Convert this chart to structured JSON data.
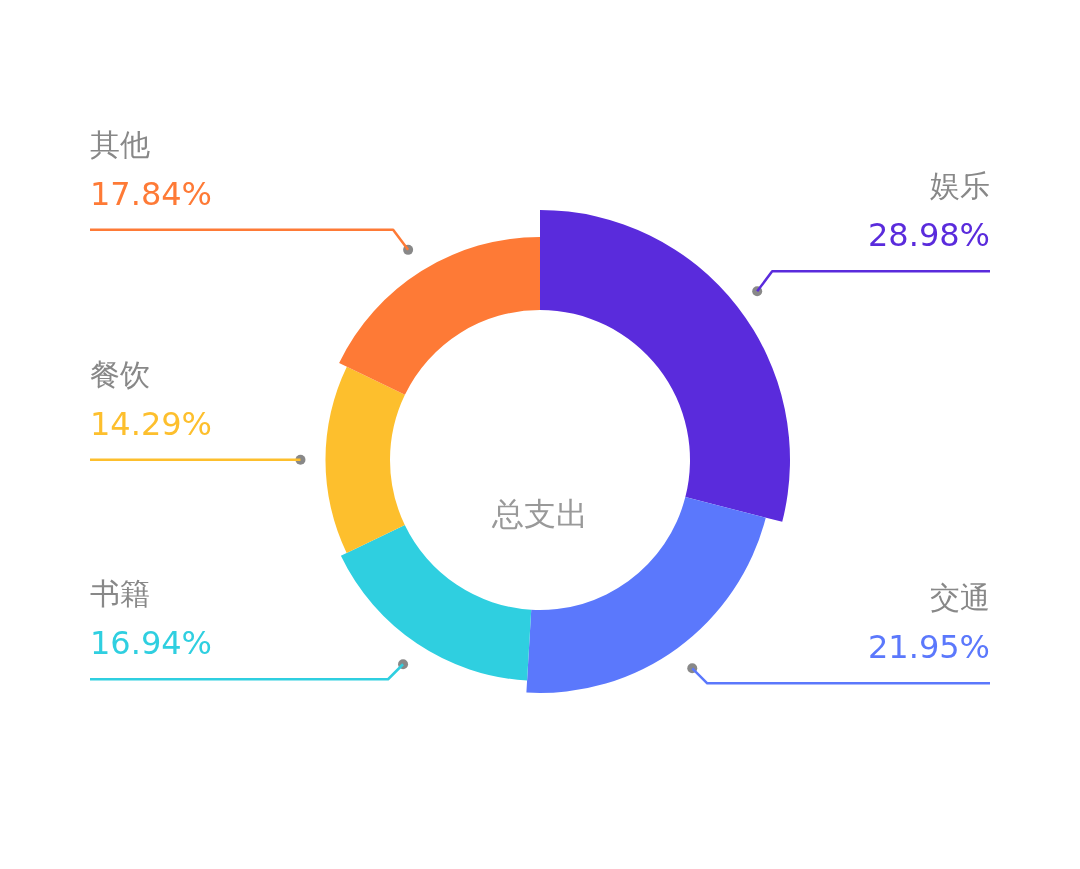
{
  "chart_data": {
    "type": "donut",
    "title": "总支出",
    "categories": [
      "娱乐",
      "交通",
      "书籍",
      "餐饮",
      "其他"
    ],
    "values": [
      28.98,
      21.95,
      16.94,
      14.29,
      17.84
    ],
    "colors": [
      "#5a2bdc",
      "#5b78fc",
      "#2fcfe0",
      "#fdbf2d",
      "#fe7a36"
    ],
    "value_labels": [
      "28.98%",
      "21.95%",
      "16.94%",
      "14.29%",
      "17.84%"
    ]
  }
}
